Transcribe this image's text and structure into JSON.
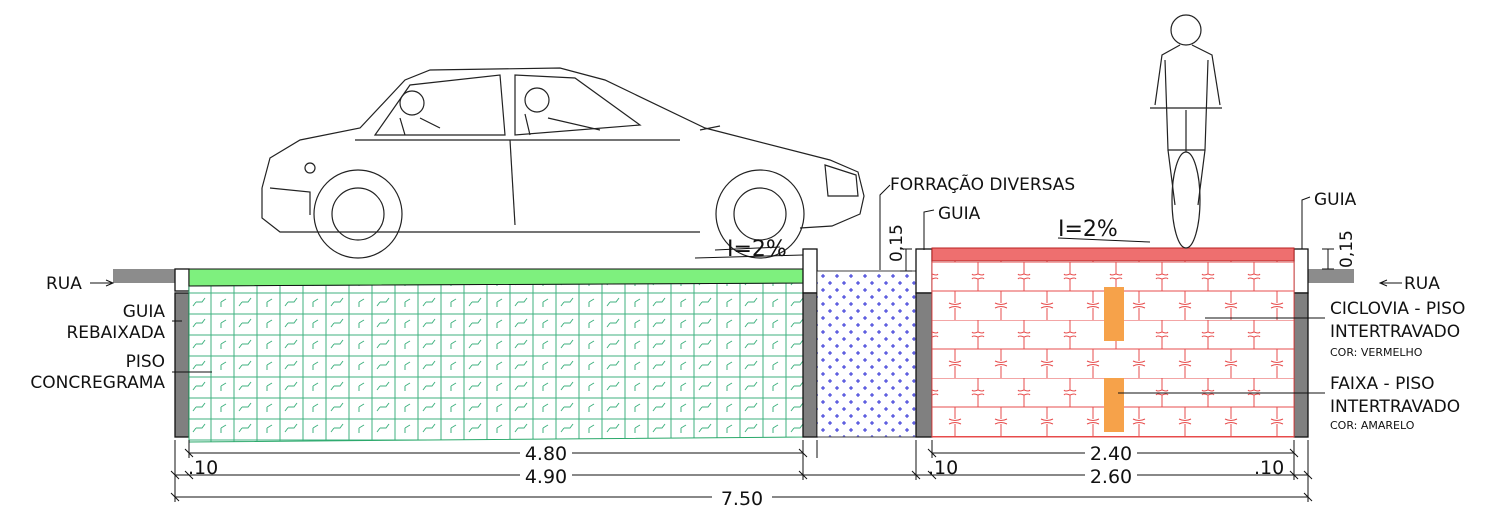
{
  "labels": {
    "rua_left": "RUA",
    "rua_right": "RUA",
    "guia_rebaixada_1": "GUIA",
    "guia_rebaixada_2": "REBAIXADA",
    "piso_1": "PISO",
    "piso_2": "CONCREGRAMA",
    "forracao": "FORRAÇÃO DIVERSAS",
    "guia_mid": "GUIA",
    "guia_right": "GUIA",
    "ciclovia_1": "CICLOVIA - PISO",
    "ciclovia_2": "INTERTRAVADO",
    "ciclovia_cor": "COR: VERMELHO",
    "faixa_1": "FAIXA - PISO",
    "faixa_2": "INTERTRAVADO",
    "faixa_cor": "COR: AMARELO",
    "slope_left": "I=2%",
    "slope_right": "I=2%",
    "height_mid": "0,15",
    "height_right": "0,15"
  },
  "dimensions": {
    "row1_left": "4.80",
    "row1_right": "2.40",
    "row2_a": ".10",
    "row2_b": "4.90",
    "row2_c": ".10",
    "row2_d": "2.60",
    "row2_e": ".10",
    "row3": "7.50"
  },
  "colors": {
    "grass_strip": "#7ef07e",
    "grass_pattern": "#3fb27f",
    "cycle_strip": "#ee6f6f",
    "cycle_pattern": "#e74c4c",
    "yellow_band": "#f6a24a",
    "ground_cover": "#2b2bd6",
    "curb": "#808080",
    "road": "#8c8c8c"
  }
}
